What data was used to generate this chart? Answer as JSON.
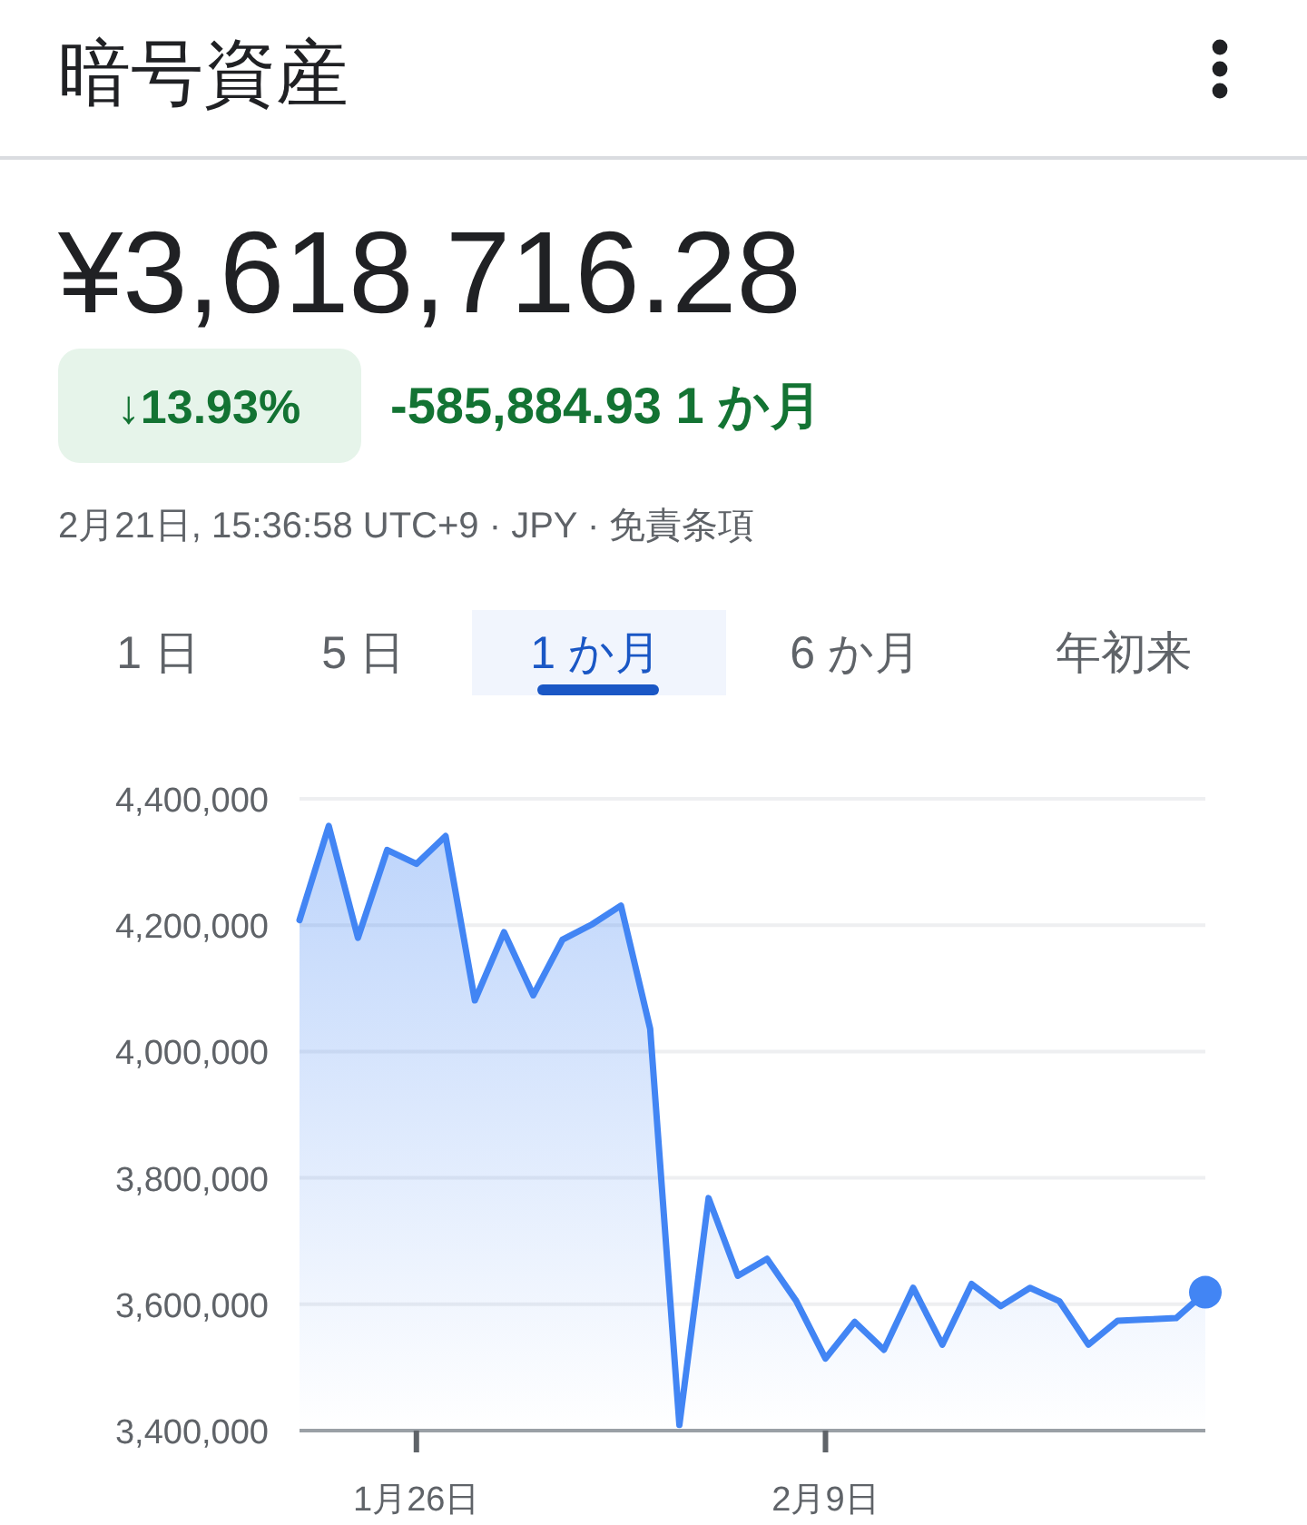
{
  "chart_data": {
    "type": "area",
    "title": "暗号資産",
    "subtitle": "¥3,618,716.28",
    "annotations": [
      "↓13.93%",
      "-585,884.93 1 か月",
      "2月21日, 15:36:58 UTC+9 · JPY · 免責条項",
      "1 日",
      "5 日",
      "1 か月",
      "6 か月",
      "年初来"
    ],
    "x": [
      "--01-22",
      "--01-23",
      "--01-24",
      "--01-25",
      "--01-26",
      "--01-27",
      "--01-28",
      "--01-29",
      "--01-30",
      "--01-31",
      "--02-01",
      "--02-02",
      "--02-03",
      "--02-04",
      "--02-05",
      "--02-06",
      "--02-07",
      "--02-08",
      "--02-09",
      "--02-10",
      "--02-11",
      "--02-12",
      "--02-13",
      "--02-14",
      "--02-15",
      "--02-16",
      "--02-17",
      "--02-18",
      "--02-19",
      "--02-20",
      "--02-21",
      "--02-22"
    ],
    "series": [
      {
        "color": "#4285f4",
        "values": [
          4208000,
          4357000,
          4180000,
          4319000,
          4297000,
          4341000,
          4081000,
          4189000,
          4089000,
          4177000,
          4201000,
          4231000,
          4036000,
          3409000,
          3768000,
          3645000,
          3672000,
          3605000,
          3514000,
          3572000,
          3528000,
          3626000,
          3536000,
          3632000,
          3597000,
          3626000,
          3605000,
          3536000,
          3574000,
          3576000,
          3578000,
          3619000
        ]
      },
      {
        "type": "scatter",
        "color": "#4285f4",
        "x": [
          "--02-22"
        ],
        "values": [
          3619000
        ]
      }
    ],
    "xlim": [
      "--01-22",
      "--02-22"
    ],
    "xticks": [
      {
        "value": "--01-26",
        "label": "1月26日"
      },
      {
        "value": "--02-09",
        "label": "2月9日"
      }
    ],
    "ylim": [
      3400000,
      4400000
    ],
    "yticks": [
      {
        "value": 3400000,
        "label": "3,400,000"
      },
      {
        "value": 3600000,
        "label": "3,600,000"
      },
      {
        "value": 3800000,
        "label": "3,800,000"
      },
      {
        "value": 4000000,
        "label": "4,000,000"
      },
      {
        "value": 4200000,
        "label": "4,200,000"
      },
      {
        "value": 4400000,
        "label": "4,400,000"
      }
    ],
    "grid": "y"
  }
}
